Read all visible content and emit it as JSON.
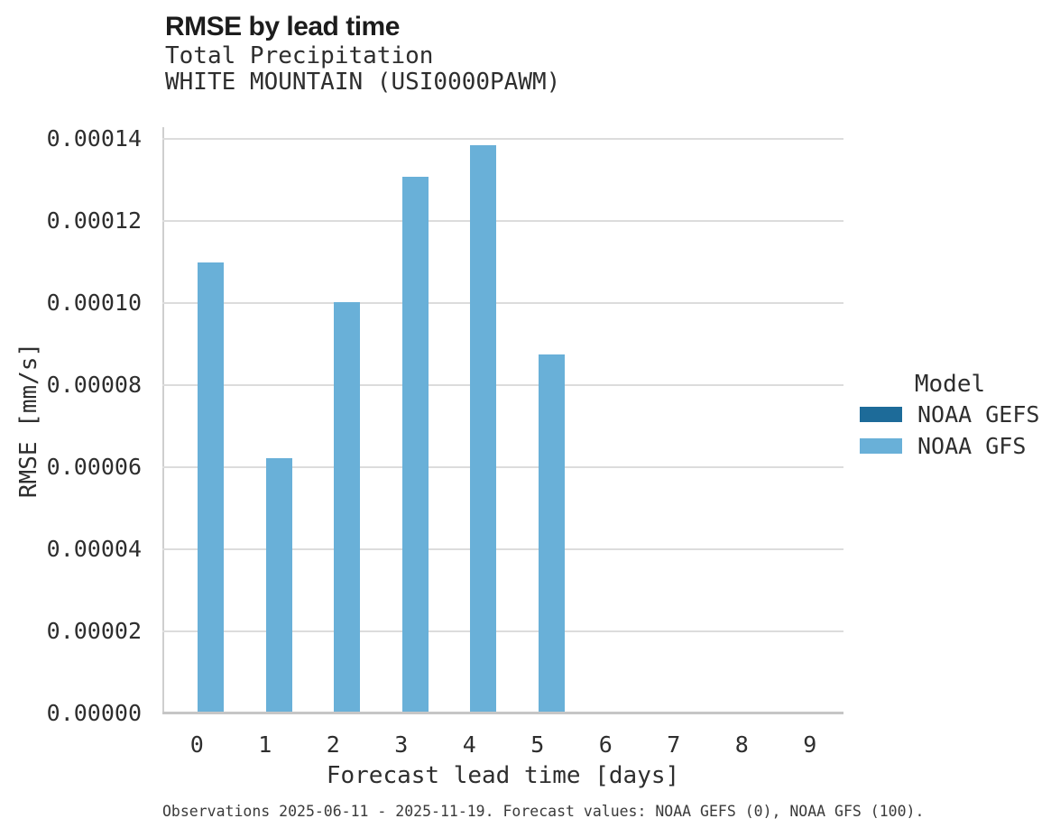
{
  "header": {
    "title": "RMSE by lead time",
    "subtitle_line1": "Total Precipitation",
    "subtitle_line2": "WHITE MOUNTAIN (USI0000PAWM)"
  },
  "legend": {
    "title": "Model",
    "items": [
      {
        "label": "NOAA GEFS",
        "color": "#1d6b99"
      },
      {
        "label": "NOAA GFS",
        "color": "#69b0d8"
      }
    ]
  },
  "caption": "Observations 2025-06-11 - 2025-11-19. Forecast values: NOAA GEFS (0), NOAA GFS (100).",
  "chart_data": {
    "type": "bar",
    "title": "RMSE by lead time",
    "subtitle": [
      "Total Precipitation",
      "WHITE MOUNTAIN (USI0000PAWM)"
    ],
    "xlabel": "Forecast lead time [days]",
    "ylabel": "RMSE [mm/s]",
    "categories": [
      "0",
      "1",
      "2",
      "3",
      "4",
      "5",
      "6",
      "7",
      "8",
      "9"
    ],
    "series": [
      {
        "name": "NOAA GEFS",
        "color": "#1d6b99",
        "values": [
          null,
          null,
          null,
          null,
          null,
          null,
          null,
          null,
          null,
          null
        ]
      },
      {
        "name": "NOAA GFS",
        "color": "#69b0d8",
        "values": [
          0.0001095,
          6.18e-05,
          9.97e-05,
          0.0001303,
          0.000138,
          8.7e-05,
          null,
          null,
          null,
          null
        ]
      }
    ],
    "ylim": [
      0,
      0.00014
    ],
    "ytick_step": 2e-05,
    "ytick_labels": [
      "0.00000",
      "0.00002",
      "0.00004",
      "0.00006",
      "0.00008",
      "0.00010",
      "0.00012",
      "0.00014"
    ],
    "grid": true,
    "legend_title": "Model",
    "legend_position": "center right"
  },
  "colors": {
    "bar_gfs": "#69b0d8",
    "bar_gefs": "#1d6b99",
    "gridline": "#dcdcdc",
    "axis_line": "#c6c6c6",
    "text": "#2e2e2e"
  }
}
